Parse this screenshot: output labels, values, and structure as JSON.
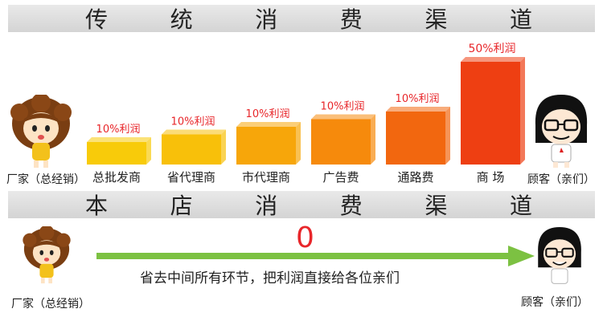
{
  "sections": {
    "top_title": [
      "传",
      "统",
      "消",
      "费",
      "渠",
      "道"
    ],
    "bottom_title": [
      "本",
      "店",
      "消",
      "费",
      "渠",
      "道"
    ]
  },
  "labels": {
    "manufacturer": "厂家（总经销）",
    "customer": "顾客（亲们）"
  },
  "direct": {
    "value": "0",
    "slogan": "省去中间所有环节，把利润直接给各位亲们",
    "arrow_color": "#7cc142"
  },
  "chart_data": {
    "type": "bar",
    "categories": [
      "总批发商",
      "省代理商",
      "市代理商",
      "广告费",
      "通路费",
      "商 场"
    ],
    "values": [
      10,
      10,
      10,
      10,
      10,
      50
    ],
    "value_labels": [
      "10%利润",
      "10%利润",
      "10%利润",
      "10%利润",
      "10%利润",
      "50%利润"
    ],
    "colors": [
      "#f8cb0a",
      "#f8c00a",
      "#f7a60a",
      "#f68a0c",
      "#f2670f",
      "#ee3f12"
    ],
    "label_color": "#e8262a"
  }
}
